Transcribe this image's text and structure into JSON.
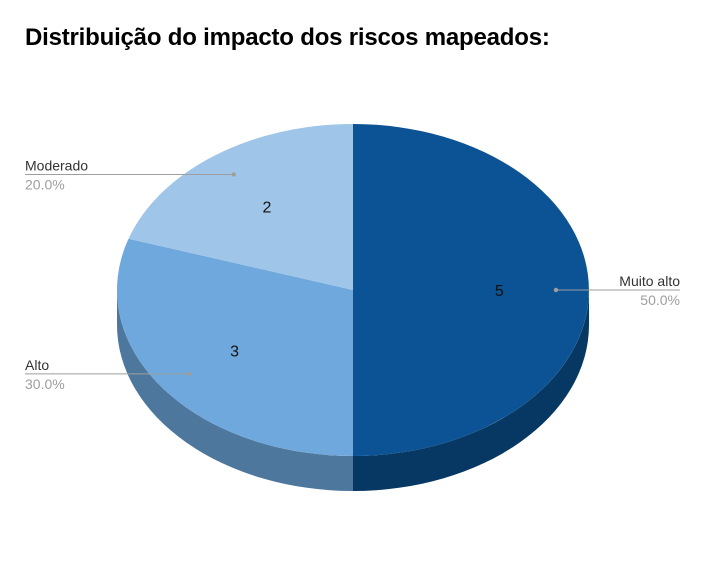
{
  "chart_data": {
    "type": "pie",
    "title": "Distribuição do impacto dos riscos mapeados:",
    "three_d": true,
    "legend": "callouts",
    "slices": [
      {
        "label": "Muito alto",
        "value": 5,
        "percent": "50.0%",
        "color": "#0b5394",
        "side_color": "#073763"
      },
      {
        "label": "Alto",
        "value": 3,
        "percent": "30.0%",
        "color": "#6fa8dc",
        "side_color": "#4e779d"
      },
      {
        "label": "Moderado",
        "value": 2,
        "percent": "20.0%",
        "color": "#9fc5e8",
        "side_color": "#7a98b4"
      }
    ]
  }
}
